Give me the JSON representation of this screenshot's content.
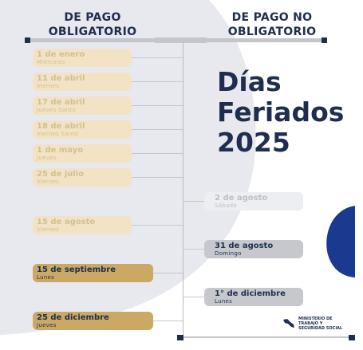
{
  "headers": {
    "left": [
      "DE PAGO",
      "OBLIGATORIO"
    ],
    "right": [
      "DE PAGO NO",
      "OBLIGATORIO"
    ]
  },
  "title": [
    "Días",
    "Feriados",
    "2025"
  ],
  "obligatorio": [
    {
      "date": "1 de enero",
      "weekday": "Miércoles"
    },
    {
      "date": "11 de abril",
      "weekday": "Viernes"
    },
    {
      "date": "17 de abril",
      "weekday": "Jueves Santo"
    },
    {
      "date": "18 de abril",
      "weekday": "Viernes Santo"
    },
    {
      "date": "1 de mayo",
      "weekday": "Jueves"
    },
    {
      "date": "25 de julio",
      "weekday": "Viernes"
    },
    {
      "date": "15 de agosto",
      "weekday": "Viernes"
    },
    {
      "date": "15 de septiembre",
      "weekday": "Lunes"
    },
    {
      "date": "25 de diciembre",
      "weekday": "Jueves"
    }
  ],
  "no_obligatorio": [
    {
      "date": "2 de agosto",
      "weekday": "Sábado"
    },
    {
      "date": "31 de agosto",
      "weekday": "Domingo"
    },
    {
      "date": "1° de diciembre",
      "weekday": "Lunes"
    }
  ],
  "logo": {
    "lines": [
      "MINISTERIO DE",
      "TRABAJO Y",
      "SEGURIDAD SOCIAL"
    ]
  },
  "colors": {
    "navy": "#1f2e4f",
    "gold": "#cba964",
    "pale_gold": "#f1e3c3",
    "gray": "#c6c8cd",
    "accent_blue": "#1a3a8f"
  }
}
